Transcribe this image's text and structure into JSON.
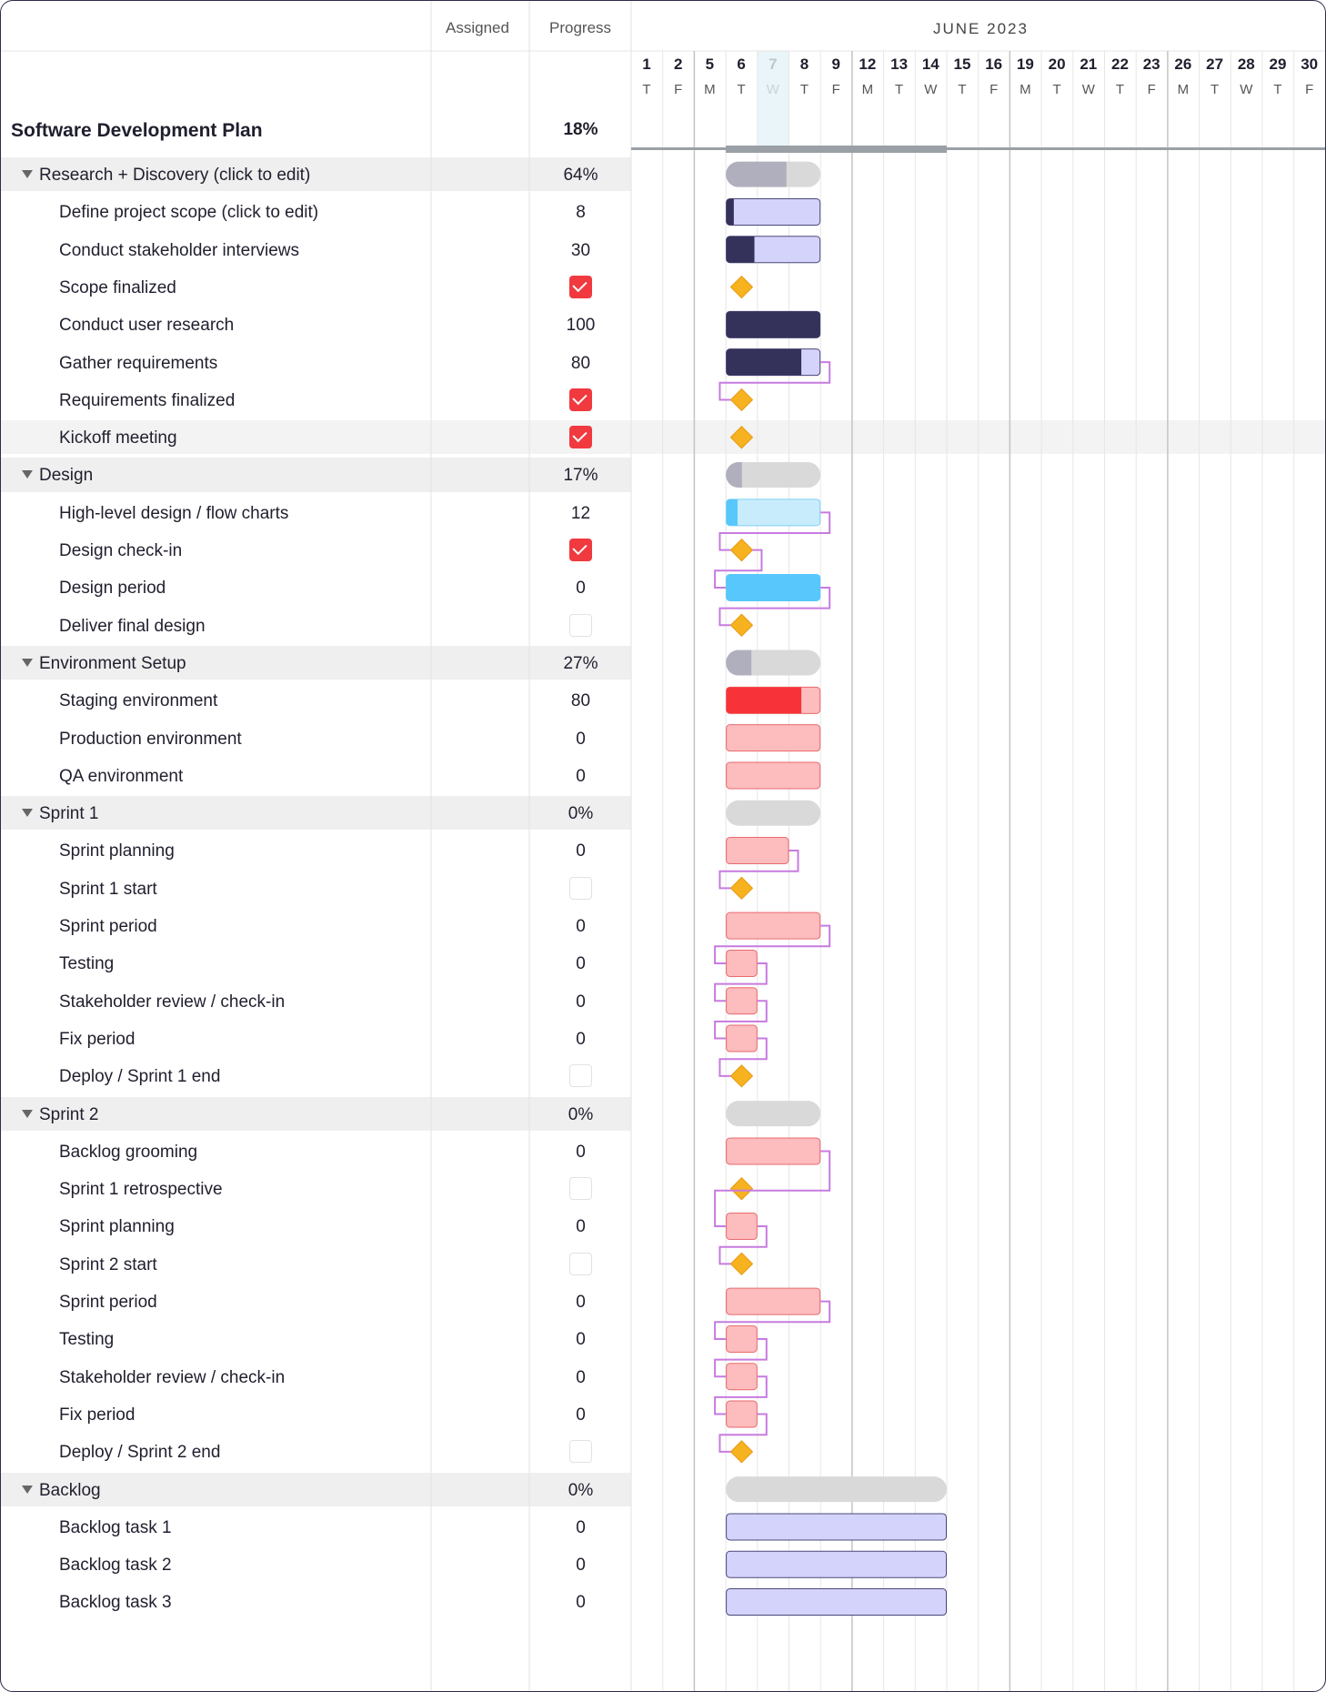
{
  "header": {
    "assigned_label": "Assigned",
    "progress_label": "Progress",
    "month_label": "JUNE 2023"
  },
  "days": [
    {
      "num": "1",
      "wd": "T"
    },
    {
      "num": "2",
      "wd": "F"
    },
    {
      "num": "5",
      "wd": "M"
    },
    {
      "num": "6",
      "wd": "T"
    },
    {
      "num": "7",
      "wd": "W"
    },
    {
      "num": "8",
      "wd": "T"
    },
    {
      "num": "9",
      "wd": "F"
    },
    {
      "num": "12",
      "wd": "M"
    },
    {
      "num": "13",
      "wd": "T"
    },
    {
      "num": "14",
      "wd": "W"
    },
    {
      "num": "15",
      "wd": "T"
    },
    {
      "num": "16",
      "wd": "F"
    },
    {
      "num": "19",
      "wd": "M"
    },
    {
      "num": "20",
      "wd": "T"
    },
    {
      "num": "21",
      "wd": "W"
    },
    {
      "num": "22",
      "wd": "T"
    },
    {
      "num": "23",
      "wd": "F"
    },
    {
      "num": "26",
      "wd": "M"
    },
    {
      "num": "27",
      "wd": "T"
    },
    {
      "num": "28",
      "wd": "W"
    },
    {
      "num": "29",
      "wd": "T"
    },
    {
      "num": "30",
      "wd": "F"
    }
  ],
  "today_day": "7",
  "colors": {
    "checkbox_checked": "#f03a3f",
    "milestone": "#f7b220",
    "dependency_line": "#c77be0",
    "group_bar_bg": "#d9d9d9",
    "group_bar_fill": "#b0afbd",
    "research_fill": "#34325a",
    "research_bg": "#d4d3fc",
    "design_fill": "#57c7fc",
    "design_bg": "#c9ecfd",
    "env_fill": "#f73339",
    "env_bg": "#fdbcbd",
    "backlog_bg": "#d4d3fc"
  },
  "project": {
    "title": "Software Development Plan",
    "progress": "18%",
    "start_day": "6",
    "end_day": "14"
  },
  "rows": [
    {
      "kind": "group",
      "label": "Research + Discovery (click to edit)",
      "progress": "64%",
      "progress_value": 0.64,
      "start_day": "6",
      "end_day": "8"
    },
    {
      "kind": "task",
      "label": "Define project scope (click to edit)",
      "progress": "8",
      "progress_value": 0.08,
      "start_day": "6",
      "end_day": "8",
      "palette": "research"
    },
    {
      "kind": "task",
      "label": "Conduct stakeholder interviews",
      "progress": "30",
      "progress_value": 0.3,
      "start_day": "6",
      "end_day": "8",
      "palette": "research"
    },
    {
      "kind": "milestone",
      "label": "Scope finalized",
      "checked": true,
      "day": "6"
    },
    {
      "kind": "task",
      "label": "Conduct user research",
      "progress": "100",
      "progress_value": 1.0,
      "start_day": "6",
      "end_day": "8",
      "palette": "research"
    },
    {
      "kind": "task",
      "label": "Gather requirements",
      "progress": "80",
      "progress_value": 0.8,
      "start_day": "6",
      "end_day": "8",
      "palette": "research",
      "dep_next": true
    },
    {
      "kind": "milestone",
      "label": "Requirements finalized",
      "checked": true,
      "day": "6"
    },
    {
      "kind": "milestone",
      "label": "Kickoff meeting",
      "checked": true,
      "day": "6",
      "highlight": true
    },
    {
      "kind": "group",
      "label": "Design",
      "progress": "17%",
      "progress_value": 0.17,
      "start_day": "6",
      "end_day": "8"
    },
    {
      "kind": "task",
      "label": "High-level design / flow charts",
      "progress": "12",
      "progress_value": 0.12,
      "start_day": "6",
      "end_day": "8",
      "palette": "design",
      "dep_next": true
    },
    {
      "kind": "milestone",
      "label": "Design check-in",
      "checked": true,
      "day": "6",
      "dep_next": true
    },
    {
      "kind": "task",
      "label": "Design period",
      "progress": "0",
      "progress_value": 0,
      "start_day": "6",
      "end_day": "8",
      "palette": "design-solid",
      "dep_next": true
    },
    {
      "kind": "milestone",
      "label": "Deliver final design",
      "checked": false,
      "day": "6"
    },
    {
      "kind": "group",
      "label": "Environment Setup",
      "progress": "27%",
      "progress_value": 0.27,
      "start_day": "6",
      "end_day": "8"
    },
    {
      "kind": "task",
      "label": "Staging environment",
      "progress": "80",
      "progress_value": 0.8,
      "start_day": "6",
      "end_day": "8",
      "palette": "env"
    },
    {
      "kind": "task",
      "label": "Production environment",
      "progress": "0",
      "progress_value": 0,
      "start_day": "6",
      "end_day": "8",
      "palette": "env"
    },
    {
      "kind": "task",
      "label": "QA environment",
      "progress": "0",
      "progress_value": 0,
      "start_day": "6",
      "end_day": "8",
      "palette": "env"
    },
    {
      "kind": "group",
      "label": "Sprint 1",
      "progress": "0%",
      "progress_value": 0,
      "start_day": "6",
      "end_day": "8"
    },
    {
      "kind": "task",
      "label": "Sprint planning",
      "progress": "0",
      "progress_value": 0,
      "start_day": "6",
      "end_day": "7",
      "palette": "env",
      "dep_next": true
    },
    {
      "kind": "milestone",
      "label": "Sprint 1 start",
      "checked": false,
      "day": "6"
    },
    {
      "kind": "task",
      "label": "Sprint period",
      "progress": "0",
      "progress_value": 0,
      "start_day": "6",
      "end_day": "8",
      "palette": "env",
      "dep_next": true
    },
    {
      "kind": "task",
      "label": "Testing",
      "progress": "0",
      "progress_value": 0,
      "start_day": "6",
      "end_day": "6",
      "palette": "env",
      "dep_next": true
    },
    {
      "kind": "task",
      "label": "Stakeholder review / check-in",
      "progress": "0",
      "progress_value": 0,
      "start_day": "6",
      "end_day": "6",
      "palette": "env",
      "dep_next": true
    },
    {
      "kind": "task",
      "label": "Fix period",
      "progress": "0",
      "progress_value": 0,
      "start_day": "6",
      "end_day": "6",
      "palette": "env",
      "dep_next": true
    },
    {
      "kind": "milestone",
      "label": "Deploy / Sprint 1 end",
      "checked": false,
      "day": "6"
    },
    {
      "kind": "group",
      "label": "Sprint 2",
      "progress": "0%",
      "progress_value": 0,
      "start_day": "6",
      "end_day": "8"
    },
    {
      "kind": "task",
      "label": "Backlog grooming",
      "progress": "0",
      "progress_value": 0,
      "start_day": "6",
      "end_day": "8",
      "palette": "env",
      "dep_skip": true
    },
    {
      "kind": "milestone",
      "label": "Sprint 1 retrospective",
      "checked": false,
      "day": "6"
    },
    {
      "kind": "task",
      "label": "Sprint planning",
      "progress": "0",
      "progress_value": 0,
      "start_day": "6",
      "end_day": "6",
      "palette": "env",
      "dep_next": true
    },
    {
      "kind": "milestone",
      "label": "Sprint 2 start",
      "checked": false,
      "day": "6"
    },
    {
      "kind": "task",
      "label": "Sprint period",
      "progress": "0",
      "progress_value": 0,
      "start_day": "6",
      "end_day": "8",
      "palette": "env",
      "dep_next": true
    },
    {
      "kind": "task",
      "label": "Testing",
      "progress": "0",
      "progress_value": 0,
      "start_day": "6",
      "end_day": "6",
      "palette": "env",
      "dep_next": true
    },
    {
      "kind": "task",
      "label": "Stakeholder review / check-in",
      "progress": "0",
      "progress_value": 0,
      "start_day": "6",
      "end_day": "6",
      "palette": "env",
      "dep_next": true
    },
    {
      "kind": "task",
      "label": "Fix period",
      "progress": "0",
      "progress_value": 0,
      "start_day": "6",
      "end_day": "6",
      "palette": "env",
      "dep_next": true
    },
    {
      "kind": "milestone",
      "label": "Deploy / Sprint 2 end",
      "checked": false,
      "day": "6"
    },
    {
      "kind": "group",
      "label": "Backlog",
      "progress": "0%",
      "progress_value": 0,
      "start_day": "6",
      "end_day": "14"
    },
    {
      "kind": "task",
      "label": "Backlog task 1",
      "progress": "0",
      "progress_value": 0,
      "start_day": "6",
      "end_day": "14",
      "palette": "backlog"
    },
    {
      "kind": "task",
      "label": "Backlog task 2",
      "progress": "0",
      "progress_value": 0,
      "start_day": "6",
      "end_day": "14",
      "palette": "backlog"
    },
    {
      "kind": "task",
      "label": "Backlog task 3",
      "progress": "0",
      "progress_value": 0,
      "start_day": "6",
      "end_day": "14",
      "palette": "backlog"
    }
  ]
}
